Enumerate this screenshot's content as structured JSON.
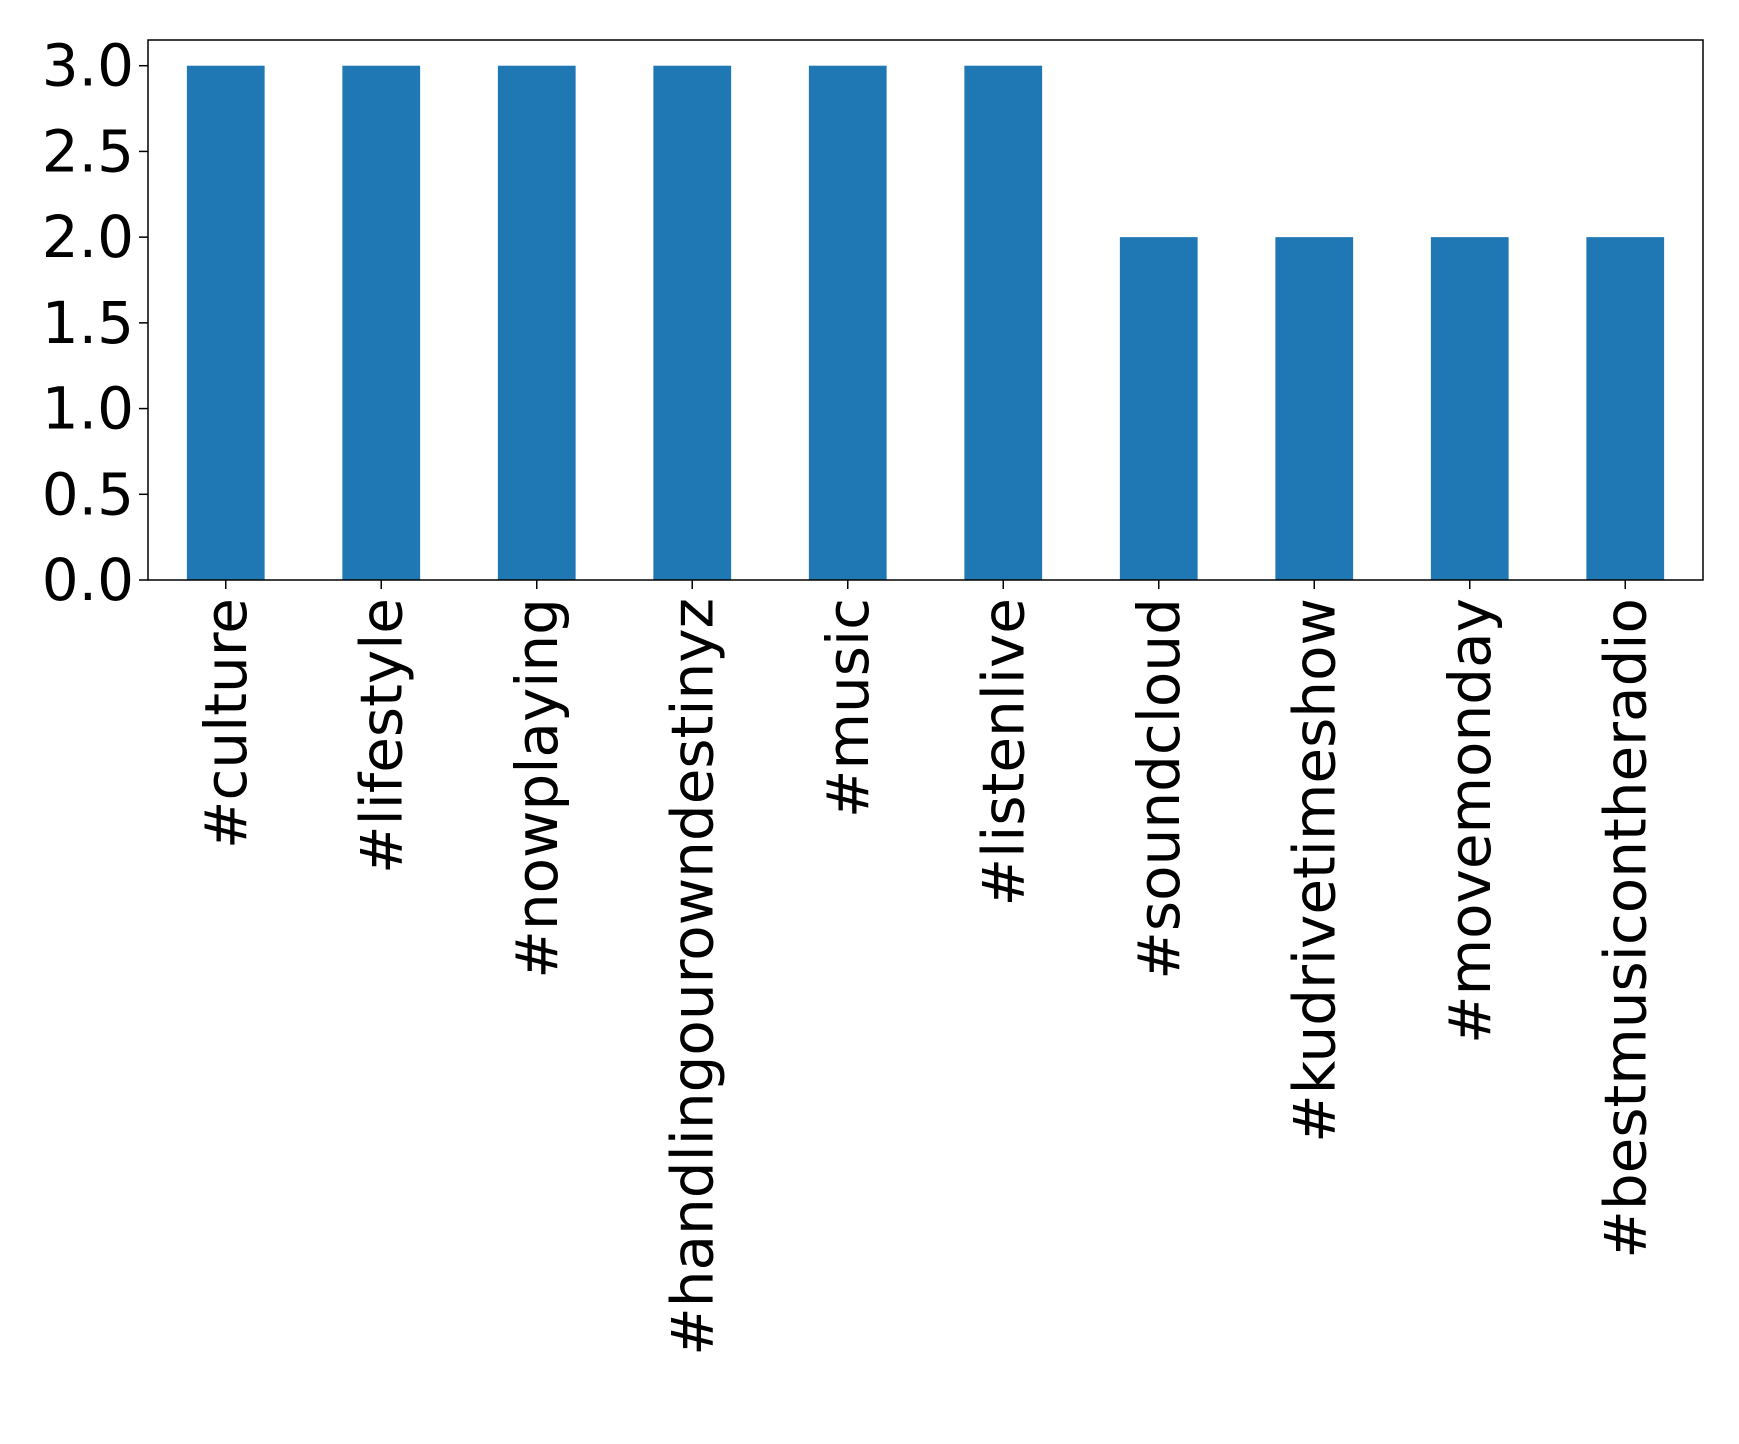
{
  "chart_data": {
    "type": "bar",
    "title": "",
    "xlabel": "",
    "ylabel": "",
    "categories": [
      "#culture",
      "#lifestyle",
      "#nowplaying",
      "#handlingourowndestinyz",
      "#music",
      "#listenlive",
      "#soundcloud",
      "#kudrivetimeshow",
      "#movemonday",
      "#bestmusicontheradio"
    ],
    "values": [
      3,
      3,
      3,
      3,
      3,
      3,
      2,
      2,
      2,
      2
    ],
    "ylim": [
      0,
      3.15
    ],
    "yticks": [
      "0.0",
      "0.5",
      "1.0",
      "1.5",
      "2.0",
      "2.5",
      "3.0"
    ],
    "bar_color": "#1f77b4",
    "grid": false,
    "legend": "none"
  }
}
